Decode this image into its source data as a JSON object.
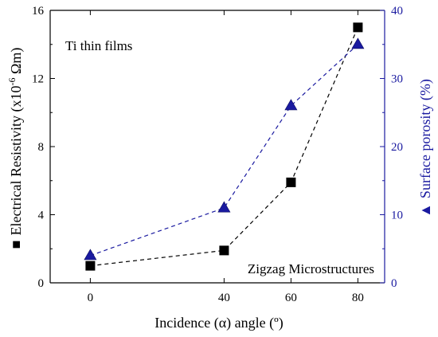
{
  "chart_data": {
    "type": "scatter",
    "x": [
      0,
      40,
      60,
      80
    ],
    "xlim": [
      -12,
      88
    ],
    "xticks": [
      0,
      40,
      60,
      80
    ],
    "xlabel": "Incidence (α) angle (º)",
    "ylabel_left_prefix": "Electrical Resistivity (x10",
    "ylabel_left_exp": "-6",
    "ylabel_left_suffix": " Ωm)",
    "ylabel_left_marker": "■",
    "ylim_left": [
      0,
      16
    ],
    "yticks_left": [
      0,
      4,
      8,
      12,
      16
    ],
    "ylabel_right": "Surface porosity (%)",
    "ylabel_right_marker": "▲",
    "ylim_right": [
      0,
      40
    ],
    "yticks_right": [
      0,
      10,
      20,
      30,
      40
    ],
    "series": [
      {
        "axis": "left",
        "marker": "square",
        "color": "#000000",
        "values": [
          1.0,
          1.9,
          5.9,
          15.0
        ]
      },
      {
        "axis": "right",
        "marker": "triangle",
        "color": "#1a1aa0",
        "values": [
          4.0,
          11.0,
          26.0,
          35.0
        ]
      }
    ],
    "annotations": {
      "top_left": "Ti thin films",
      "bottom_right": "Zigzag Microstructures"
    },
    "grid": false
  }
}
